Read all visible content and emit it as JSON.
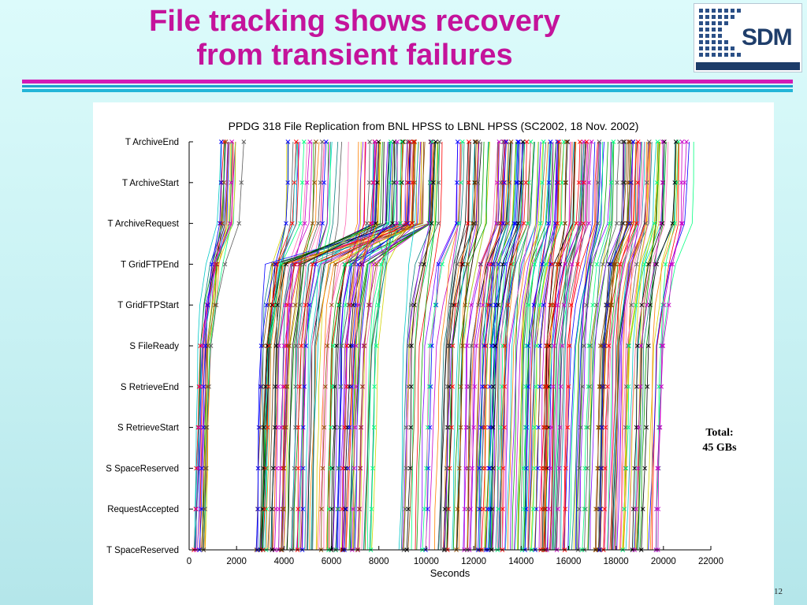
{
  "slide": {
    "title_line1": "File tracking shows recovery",
    "title_line2": "from transient failures",
    "logo_text": "SDM",
    "page_number": "12",
    "annotation_line1": "Total:",
    "annotation_line2": "45 GBs",
    "colors": {
      "title": "#c4139b",
      "rule_magenta": "#d21ab6",
      "rule_cyan": "#1d9fcd",
      "logo_blue": "#1f3e6b"
    }
  },
  "chart_data": {
    "type": "line",
    "title": "PPDG 318 File Replication from BNL HPSS to LBNL HPSS (SC2002, 18 Nov. 2002)",
    "xlabel": "Seconds",
    "ylabel": "",
    "xlim": [
      0,
      22000
    ],
    "xticks": [
      0,
      2000,
      4000,
      6000,
      8000,
      10000,
      12000,
      14000,
      16000,
      18000,
      20000,
      22000
    ],
    "categories": [
      "T SpaceReserved",
      "RequestAccepted",
      "S SpaceReserved",
      "S RetrieveStart",
      "S RetrieveEnd",
      "S FileReady",
      "T GridFTPStart",
      "T GridFTPEnd",
      "T ArchiveRequest",
      "T ArchiveStart",
      "T ArchiveEnd"
    ],
    "series_count": 318,
    "series_style": "one polyline per file through the 11 stages, marked with x at each stage, many colors",
    "grid": false,
    "legend": "none"
  }
}
